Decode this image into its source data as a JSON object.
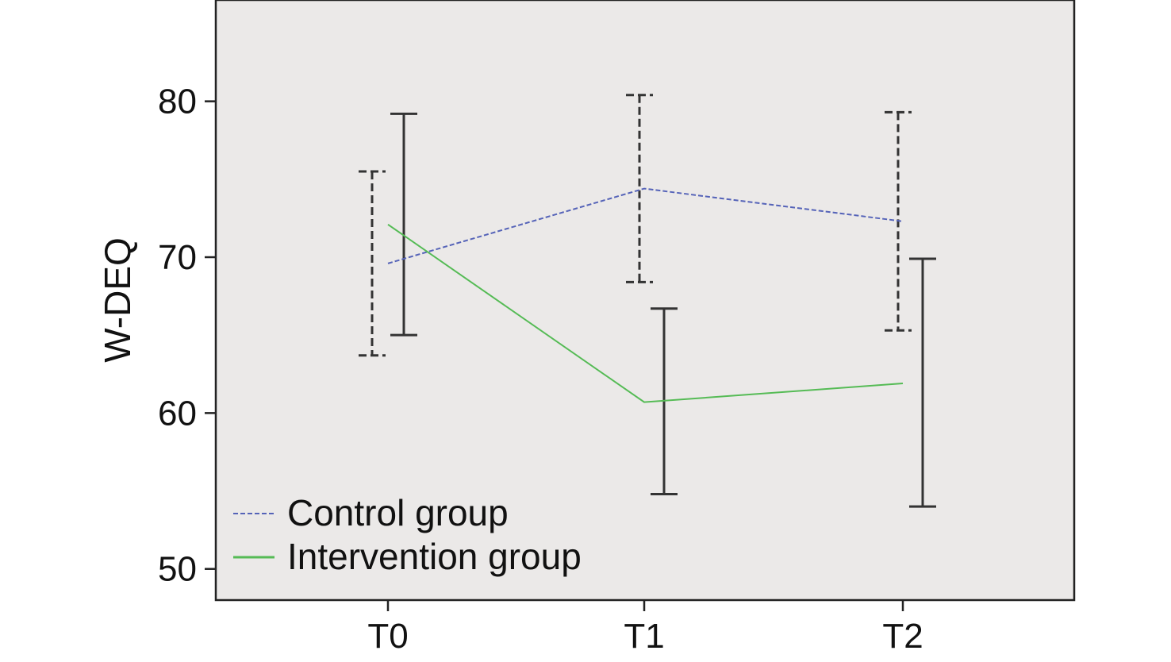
{
  "chart_data": {
    "type": "line",
    "categories": [
      "T0",
      "T1",
      "T2"
    ],
    "ylabel": "W-DEQ",
    "xlabel": "",
    "ylim": [
      48.0,
      86.5
    ],
    "yticks": [
      50,
      60,
      70,
      80
    ],
    "grid": false,
    "legend_position": "bottom-left",
    "series": [
      {
        "name": "Control group",
        "color": "#5563b8",
        "line_style": "dashed",
        "values": [
          69.6,
          74.4,
          72.3
        ],
        "error_low": [
          63.7,
          68.4,
          65.3
        ],
        "error_high": [
          75.5,
          80.4,
          79.3
        ]
      },
      {
        "name": "Intervention group",
        "color": "#55bb55",
        "line_style": "solid",
        "values": [
          72.1,
          60.7,
          61.9
        ],
        "error_low": [
          65.0,
          54.8,
          54.0
        ],
        "error_high": [
          79.2,
          66.7,
          69.9
        ]
      }
    ],
    "plot_background": "#ebe9e8"
  }
}
